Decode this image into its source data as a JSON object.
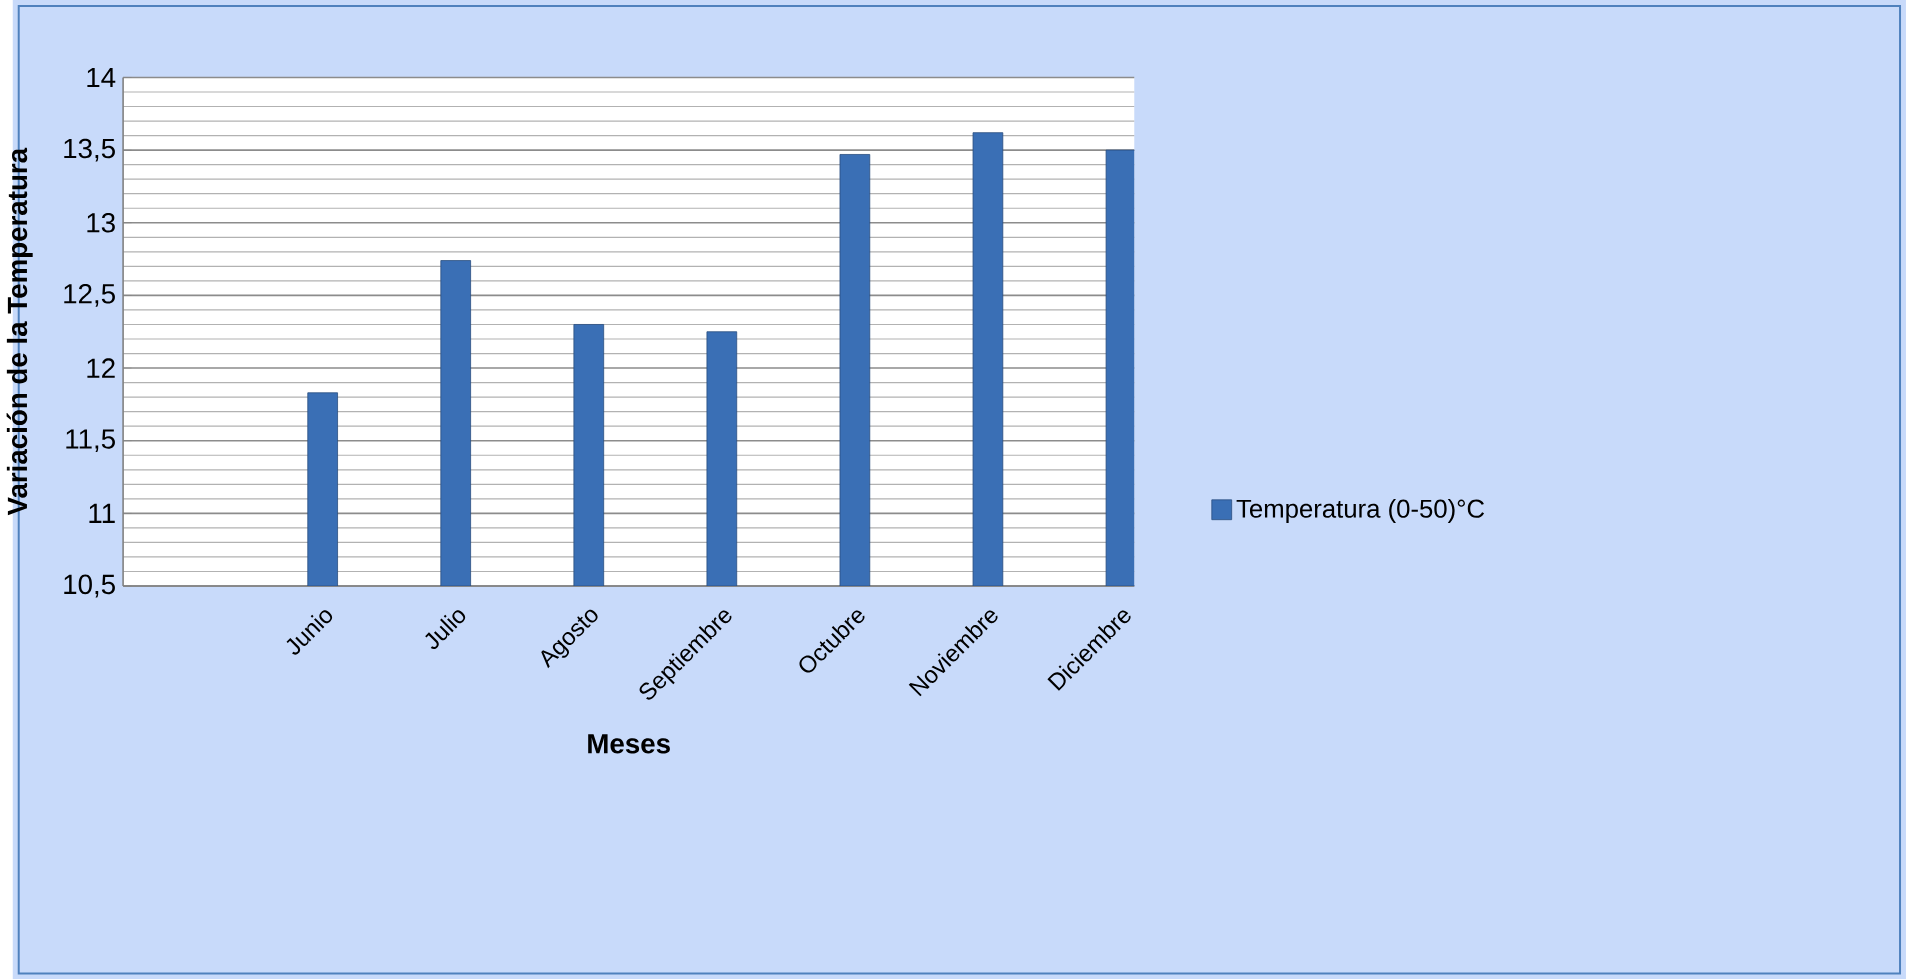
{
  "chart_data": {
    "type": "bar",
    "xlabel": "Meses",
    "ylabel": "Variación de la Temperatura",
    "categories": [
      "Junio",
      "Julio",
      "Agosto",
      "Septiembre",
      "Octubre",
      "Noviembre",
      "Diciembre"
    ],
    "series": [
      {
        "name": "Temperatura (0-50)°C",
        "color": "#3a6fb5",
        "values": [
          11.83,
          12.74,
          12.3,
          12.25,
          13.47,
          13.62,
          13.5
        ]
      }
    ],
    "ylim": [
      10.5,
      14
    ],
    "yticks": [
      {
        "value": 10.5,
        "label": "10,5"
      },
      11,
      {
        "value": 11.5,
        "label": "11,5"
      },
      12,
      {
        "value": 12.5,
        "label": "12,5"
      },
      13,
      {
        "value": 13.5,
        "label": "13,5"
      },
      14
    ],
    "grid": "y",
    "legend": "right"
  }
}
